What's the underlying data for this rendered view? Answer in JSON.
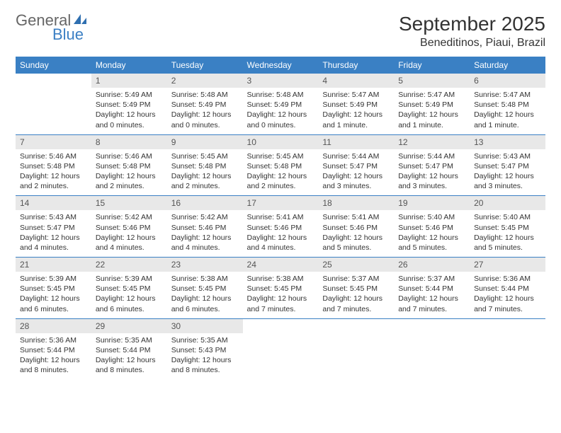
{
  "logo": {
    "word1": "General",
    "word2": "Blue",
    "word1_color": "#666666",
    "word2_color": "#3b7fc4",
    "sail_color": "#2f6fb0"
  },
  "title": "September 2025",
  "location": "Beneditinos, Piaui, Brazil",
  "colors": {
    "header_bg": "#3a80c4",
    "header_text": "#ffffff",
    "daynum_bg": "#e8e8e8",
    "rule": "#3a80c4",
    "body_text": "#333333"
  },
  "fonts": {
    "title_size": 28,
    "location_size": 16,
    "th_size": 12,
    "daynum_size": 12,
    "body_size": 10.5
  },
  "columns": [
    "Sunday",
    "Monday",
    "Tuesday",
    "Wednesday",
    "Thursday",
    "Friday",
    "Saturday"
  ],
  "weeks": [
    [
      null,
      {
        "n": "1",
        "sr": "Sunrise: 5:49 AM",
        "ss": "Sunset: 5:49 PM",
        "dl": "Daylight: 12 hours and 0 minutes."
      },
      {
        "n": "2",
        "sr": "Sunrise: 5:48 AM",
        "ss": "Sunset: 5:49 PM",
        "dl": "Daylight: 12 hours and 0 minutes."
      },
      {
        "n": "3",
        "sr": "Sunrise: 5:48 AM",
        "ss": "Sunset: 5:49 PM",
        "dl": "Daylight: 12 hours and 0 minutes."
      },
      {
        "n": "4",
        "sr": "Sunrise: 5:47 AM",
        "ss": "Sunset: 5:49 PM",
        "dl": "Daylight: 12 hours and 1 minute."
      },
      {
        "n": "5",
        "sr": "Sunrise: 5:47 AM",
        "ss": "Sunset: 5:49 PM",
        "dl": "Daylight: 12 hours and 1 minute."
      },
      {
        "n": "6",
        "sr": "Sunrise: 5:47 AM",
        "ss": "Sunset: 5:48 PM",
        "dl": "Daylight: 12 hours and 1 minute."
      }
    ],
    [
      {
        "n": "7",
        "sr": "Sunrise: 5:46 AM",
        "ss": "Sunset: 5:48 PM",
        "dl": "Daylight: 12 hours and 2 minutes."
      },
      {
        "n": "8",
        "sr": "Sunrise: 5:46 AM",
        "ss": "Sunset: 5:48 PM",
        "dl": "Daylight: 12 hours and 2 minutes."
      },
      {
        "n": "9",
        "sr": "Sunrise: 5:45 AM",
        "ss": "Sunset: 5:48 PM",
        "dl": "Daylight: 12 hours and 2 minutes."
      },
      {
        "n": "10",
        "sr": "Sunrise: 5:45 AM",
        "ss": "Sunset: 5:48 PM",
        "dl": "Daylight: 12 hours and 2 minutes."
      },
      {
        "n": "11",
        "sr": "Sunrise: 5:44 AM",
        "ss": "Sunset: 5:47 PM",
        "dl": "Daylight: 12 hours and 3 minutes."
      },
      {
        "n": "12",
        "sr": "Sunrise: 5:44 AM",
        "ss": "Sunset: 5:47 PM",
        "dl": "Daylight: 12 hours and 3 minutes."
      },
      {
        "n": "13",
        "sr": "Sunrise: 5:43 AM",
        "ss": "Sunset: 5:47 PM",
        "dl": "Daylight: 12 hours and 3 minutes."
      }
    ],
    [
      {
        "n": "14",
        "sr": "Sunrise: 5:43 AM",
        "ss": "Sunset: 5:47 PM",
        "dl": "Daylight: 12 hours and 4 minutes."
      },
      {
        "n": "15",
        "sr": "Sunrise: 5:42 AM",
        "ss": "Sunset: 5:46 PM",
        "dl": "Daylight: 12 hours and 4 minutes."
      },
      {
        "n": "16",
        "sr": "Sunrise: 5:42 AM",
        "ss": "Sunset: 5:46 PM",
        "dl": "Daylight: 12 hours and 4 minutes."
      },
      {
        "n": "17",
        "sr": "Sunrise: 5:41 AM",
        "ss": "Sunset: 5:46 PM",
        "dl": "Daylight: 12 hours and 4 minutes."
      },
      {
        "n": "18",
        "sr": "Sunrise: 5:41 AM",
        "ss": "Sunset: 5:46 PM",
        "dl": "Daylight: 12 hours and 5 minutes."
      },
      {
        "n": "19",
        "sr": "Sunrise: 5:40 AM",
        "ss": "Sunset: 5:46 PM",
        "dl": "Daylight: 12 hours and 5 minutes."
      },
      {
        "n": "20",
        "sr": "Sunrise: 5:40 AM",
        "ss": "Sunset: 5:45 PM",
        "dl": "Daylight: 12 hours and 5 minutes."
      }
    ],
    [
      {
        "n": "21",
        "sr": "Sunrise: 5:39 AM",
        "ss": "Sunset: 5:45 PM",
        "dl": "Daylight: 12 hours and 6 minutes."
      },
      {
        "n": "22",
        "sr": "Sunrise: 5:39 AM",
        "ss": "Sunset: 5:45 PM",
        "dl": "Daylight: 12 hours and 6 minutes."
      },
      {
        "n": "23",
        "sr": "Sunrise: 5:38 AM",
        "ss": "Sunset: 5:45 PM",
        "dl": "Daylight: 12 hours and 6 minutes."
      },
      {
        "n": "24",
        "sr": "Sunrise: 5:38 AM",
        "ss": "Sunset: 5:45 PM",
        "dl": "Daylight: 12 hours and 7 minutes."
      },
      {
        "n": "25",
        "sr": "Sunrise: 5:37 AM",
        "ss": "Sunset: 5:45 PM",
        "dl": "Daylight: 12 hours and 7 minutes."
      },
      {
        "n": "26",
        "sr": "Sunrise: 5:37 AM",
        "ss": "Sunset: 5:44 PM",
        "dl": "Daylight: 12 hours and 7 minutes."
      },
      {
        "n": "27",
        "sr": "Sunrise: 5:36 AM",
        "ss": "Sunset: 5:44 PM",
        "dl": "Daylight: 12 hours and 7 minutes."
      }
    ],
    [
      {
        "n": "28",
        "sr": "Sunrise: 5:36 AM",
        "ss": "Sunset: 5:44 PM",
        "dl": "Daylight: 12 hours and 8 minutes."
      },
      {
        "n": "29",
        "sr": "Sunrise: 5:35 AM",
        "ss": "Sunset: 5:44 PM",
        "dl": "Daylight: 12 hours and 8 minutes."
      },
      {
        "n": "30",
        "sr": "Sunrise: 5:35 AM",
        "ss": "Sunset: 5:43 PM",
        "dl": "Daylight: 12 hours and 8 minutes."
      },
      null,
      null,
      null,
      null
    ]
  ]
}
